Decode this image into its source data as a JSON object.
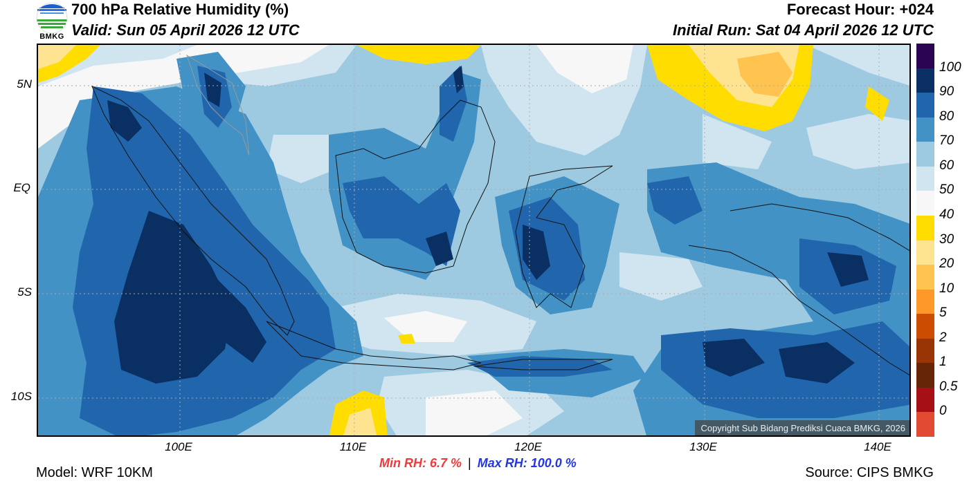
{
  "header": {
    "title": "700 hPa Relative Humidity (%)",
    "valid": "Valid: Sun 05 April 2026 12 UTC",
    "forecast_hour": "Forecast Hour: +024",
    "initial_run": "Initial Run: Sat 04 April 2026 12 UTC",
    "logo_text": "BMKG"
  },
  "map": {
    "latitude_labels": [
      "5N",
      "EQ",
      "5S",
      "10S"
    ],
    "longitude_labels": [
      "100E",
      "110E",
      "120E",
      "130E",
      "140E"
    ],
    "copyright": "Copyright Sub Bidang Prediksi Cuaca BMKG, 2026",
    "colors": {
      "dry": "#ffdd00",
      "moist": "#4292c6",
      "saturated": "#0a2f63"
    }
  },
  "colorbar": {
    "labels": [
      "100",
      "90",
      "80",
      "70",
      "60",
      "50",
      "40",
      "30",
      "20",
      "10",
      "5",
      "2",
      "1",
      "0.5",
      "0"
    ],
    "colors": [
      "#2a0450",
      "#0a2f63",
      "#2166ac",
      "#4292c6",
      "#9ecae1",
      "#d1e5f0",
      "#f7f7f7",
      "#ffdd00",
      "#fee391",
      "#fec44f",
      "#fe9929",
      "#cc4c02",
      "#993404",
      "#662506",
      "#a50f15",
      "#e34a33"
    ]
  },
  "stats": {
    "min_rh": "Min RH:   6.7 %",
    "separator": "|",
    "max_rh": "Max RH: 100.0 %"
  },
  "footer": {
    "model": "Model: WRF 10KM",
    "source": "Source: CIPS BMKG"
  }
}
